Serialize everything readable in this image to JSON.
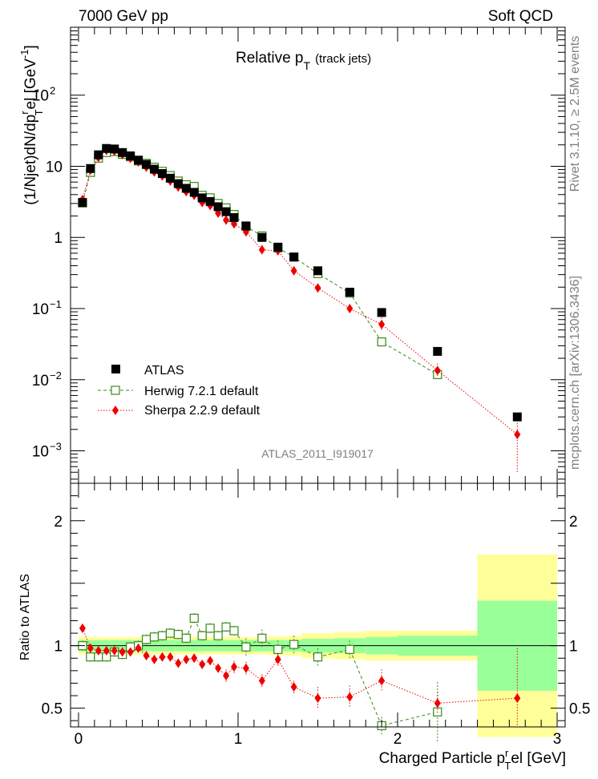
{
  "header": {
    "left": "7000 GeV pp",
    "right": "Soft QCD",
    "plot_title": "Relative p",
    "plot_title_sub": "T",
    "plot_title_suffix": "(track jets)",
    "side_top": "Rivet 3.1.10, ≥ 2.5M events",
    "side_bottom": "mcplots.cern.ch [arXiv:1306.3436]",
    "watermark": "ATLAS_2011_I919017"
  },
  "axes": {
    "ylabel_main": "(1/Njet)dN/dp",
    "ylabel_main_sub": "T",
    "ylabel_main_sup": "r",
    "ylabel_main_rest": "el [GeV",
    "ylabel_main_sup2": "-1",
    "ylabel_main_end": "]",
    "ylabel_ratio": "Ratio to ATLAS",
    "xlabel": "Charged Particle p",
    "xlabel_sup": "r",
    "xlabel_sub": "T",
    "xlabel_rest": "el [GeV]",
    "main_ticks": [
      {
        "v": 100,
        "label": "10",
        "exp": "2"
      },
      {
        "v": 10,
        "label": "10",
        "exp": ""
      },
      {
        "v": 1,
        "label": "1",
        "exp": ""
      },
      {
        "v": 0.1,
        "label": "10",
        "exp": "−1"
      },
      {
        "v": 0.01,
        "label": "10",
        "exp": "−2"
      },
      {
        "v": 0.001,
        "label": "10",
        "exp": "−3"
      }
    ],
    "ratio_ticks": [
      {
        "v": 2,
        "label": "2"
      },
      {
        "v": 1,
        "label": "1"
      },
      {
        "v": 0.5,
        "label": "0.5"
      }
    ],
    "x_ticks": [
      {
        "v": 0,
        "label": "0"
      },
      {
        "v": 1,
        "label": "1"
      },
      {
        "v": 2,
        "label": "2"
      },
      {
        "v": 3,
        "label": "3"
      }
    ]
  },
  "legend": {
    "atlas": "ATLAS",
    "herwig": "Herwig 7.2.1 default",
    "sherpa": "Sherpa 2.2.9 default"
  },
  "colors": {
    "atlas": "#000000",
    "herwig": "#3a8a17",
    "sherpa": "#ee0000",
    "band_inner": "#99ff99",
    "band_outer": "#ffff99"
  },
  "chart_data": {
    "type": "scatter",
    "title": "Relative pT (track jets)",
    "xlabel": "Charged Particle pTrel [GeV]",
    "ylabel": "(1/Njet)dN/dpTrel [GeV^-1]",
    "xlim": [
      -0.05,
      3.05
    ],
    "ylim_main": [
      0.00035,
      900
    ],
    "ylim_ratio": [
      0.35,
      2.3
    ],
    "yscale_main": "log",
    "legend_position": "bottom-left",
    "x": [
      0.025,
      0.075,
      0.125,
      0.175,
      0.225,
      0.275,
      0.325,
      0.375,
      0.425,
      0.475,
      0.525,
      0.575,
      0.625,
      0.675,
      0.725,
      0.775,
      0.825,
      0.875,
      0.925,
      0.975,
      1.05,
      1.15,
      1.25,
      1.35,
      1.5,
      1.7,
      1.9,
      2.25,
      2.75
    ],
    "x_err": [
      0.025,
      0.025,
      0.025,
      0.025,
      0.025,
      0.025,
      0.025,
      0.025,
      0.025,
      0.025,
      0.025,
      0.025,
      0.025,
      0.025,
      0.025,
      0.025,
      0.025,
      0.025,
      0.025,
      0.025,
      0.05,
      0.05,
      0.05,
      0.05,
      0.1,
      0.1,
      0.1,
      0.25,
      0.25
    ],
    "band_inner": [
      0.045,
      0.045,
      0.045,
      0.045,
      0.045,
      0.045,
      0.045,
      0.045,
      0.045,
      0.045,
      0.045,
      0.045,
      0.045,
      0.045,
      0.045,
      0.045,
      0.045,
      0.045,
      0.045,
      0.045,
      0.045,
      0.045,
      0.045,
      0.045,
      0.055,
      0.06,
      0.07,
      0.08,
      0.36
    ],
    "band_outer": [
      0.07,
      0.07,
      0.07,
      0.07,
      0.07,
      0.07,
      0.07,
      0.07,
      0.07,
      0.07,
      0.07,
      0.07,
      0.07,
      0.07,
      0.07,
      0.07,
      0.07,
      0.07,
      0.07,
      0.07,
      0.07,
      0.07,
      0.075,
      0.08,
      0.1,
      0.11,
      0.12,
      0.12,
      0.73
    ],
    "series": [
      {
        "name": "ATLAS",
        "marker": "filled-square",
        "values": [
          3.1,
          9.3,
          14.5,
          17.8,
          17.5,
          15.6,
          14.0,
          12.2,
          10.6,
          9.1,
          7.9,
          6.8,
          5.7,
          4.9,
          4.3,
          3.6,
          3.2,
          2.7,
          2.3,
          1.9,
          1.45,
          1.0,
          0.73,
          0.53,
          0.34,
          0.17,
          0.088,
          0.025,
          0.003
        ]
      },
      {
        "name": "Herwig 7.2.1 default",
        "marker": "open-square",
        "values": [
          3.05,
          8.2,
          13.0,
          15.6,
          16.1,
          14.7,
          13.6,
          11.9,
          11.0,
          9.7,
          8.5,
          7.4,
          6.2,
          5.5,
          5.2,
          3.9,
          3.6,
          3.0,
          2.6,
          2.1,
          1.43,
          1.05,
          0.71,
          0.53,
          0.31,
          0.165,
          0.034,
          0.0118,
          null
        ],
        "ratio": [
          1.0,
          0.91,
          0.91,
          0.91,
          0.95,
          0.93,
          0.99,
          1.0,
          1.05,
          1.07,
          1.08,
          1.1,
          1.09,
          1.06,
          1.22,
          1.08,
          1.14,
          1.08,
          1.15,
          1.12,
          0.99,
          1.06,
          0.97,
          1.01,
          0.91,
          0.97,
          0.36,
          0.47,
          null
        ]
      },
      {
        "name": "Sherpa 2.2.9 default",
        "marker": "filled-diamond",
        "values": [
          3.4,
          8.8,
          13.3,
          16.7,
          16.3,
          14.6,
          12.9,
          11.5,
          9.7,
          8.3,
          7.3,
          6.2,
          5.1,
          4.4,
          3.9,
          3.1,
          2.8,
          2.2,
          1.75,
          1.55,
          1.2,
          0.67,
          0.65,
          0.34,
          0.195,
          0.1,
          0.06,
          0.0135,
          0.0017
        ],
        "ratio": [
          1.14,
          0.98,
          0.96,
          0.96,
          0.96,
          0.95,
          0.95,
          0.98,
          0.92,
          0.89,
          0.91,
          0.91,
          0.86,
          0.89,
          0.9,
          0.85,
          0.88,
          0.82,
          0.76,
          0.83,
          0.82,
          0.72,
          0.89,
          0.67,
          0.58,
          0.59,
          0.72,
          0.54,
          0.58
        ]
      }
    ]
  }
}
